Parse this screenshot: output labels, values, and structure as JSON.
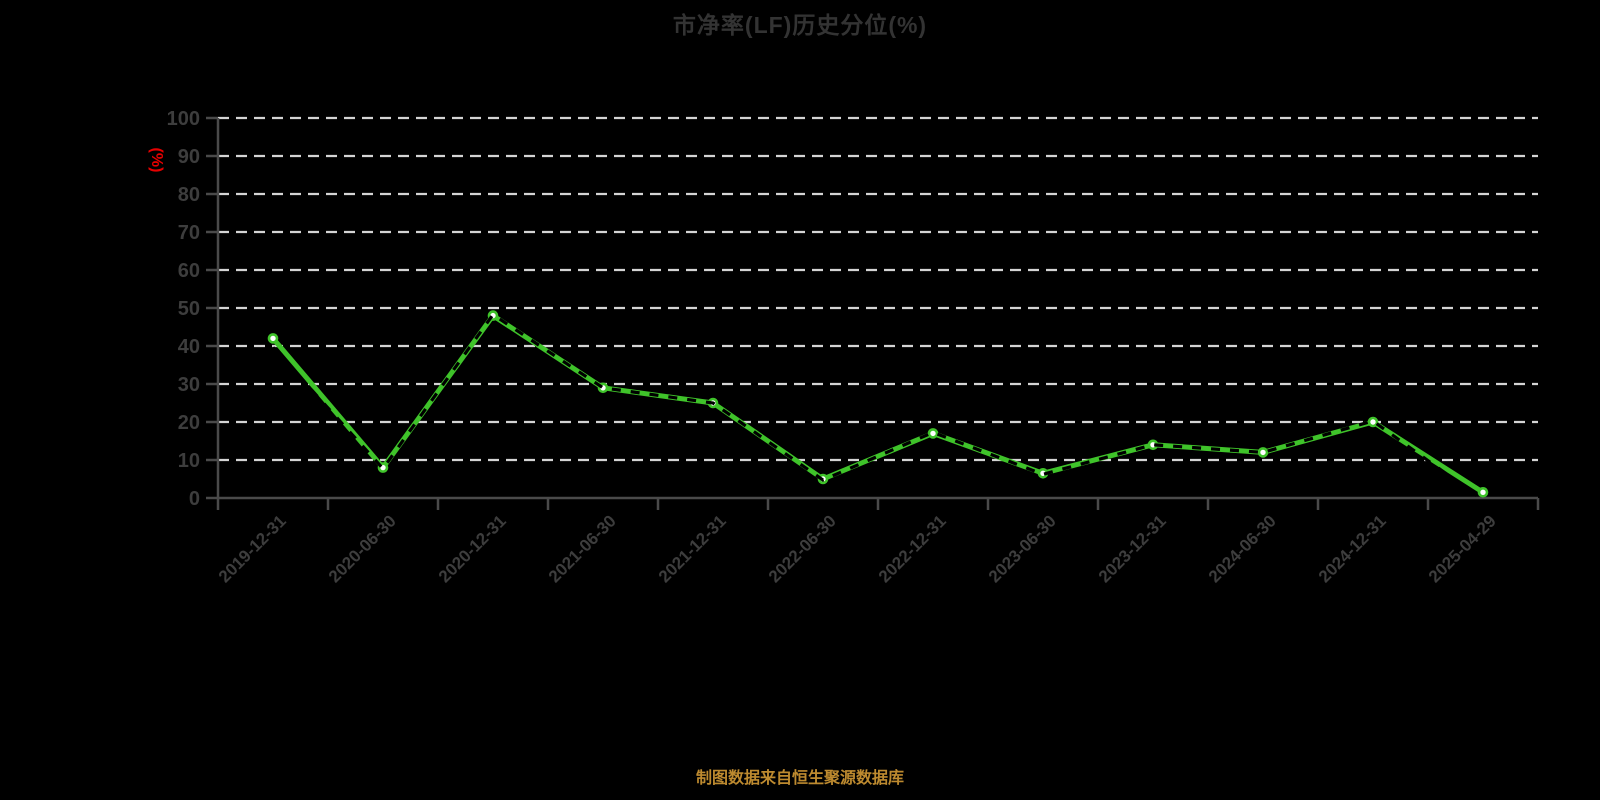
{
  "header": {
    "title": "市净率(LF)历史分位(%)",
    "title_color": "#333333"
  },
  "footer": {
    "source_note": "制图数据来自恒生聚源数据库",
    "color": "#bd8a2f"
  },
  "chart_data": {
    "type": "line",
    "title": "市净率(LF)历史分位(%)",
    "title_color": "#333333",
    "ylabel": "(%)",
    "ylabel_color": "#e60000",
    "xlabel": "",
    "categories": [
      "2019-12-31",
      "2020-06-30",
      "2020-12-31",
      "2021-06-30",
      "2021-12-31",
      "2022-06-30",
      "2022-12-31",
      "2023-06-30",
      "2023-12-31",
      "2024-06-30",
      "2024-12-31",
      "2025-04-29"
    ],
    "series": [
      {
        "name": "市净率(LF)历史分位",
        "values": [
          42,
          8,
          48,
          29,
          25,
          5,
          17,
          6.5,
          14,
          12,
          20,
          1.5
        ]
      }
    ],
    "ylim": [
      0,
      100
    ],
    "ytick_step": 10,
    "yticks": [
      0,
      10,
      20,
      30,
      40,
      50,
      60,
      70,
      80,
      90,
      100
    ],
    "grid": {
      "orientation": "horizontal",
      "style": "dashed",
      "color": "#d4d4d4"
    },
    "legend": "none",
    "axis_color": "#4a4a4a",
    "tick_label_color": "#3d3d3d",
    "line_color": "#3fc32a",
    "marker": {
      "shape": "circle",
      "fill": "#ffffff",
      "stroke": "#3fc32a"
    },
    "overlay": {
      "style": "dashed",
      "color": "#000000"
    }
  }
}
